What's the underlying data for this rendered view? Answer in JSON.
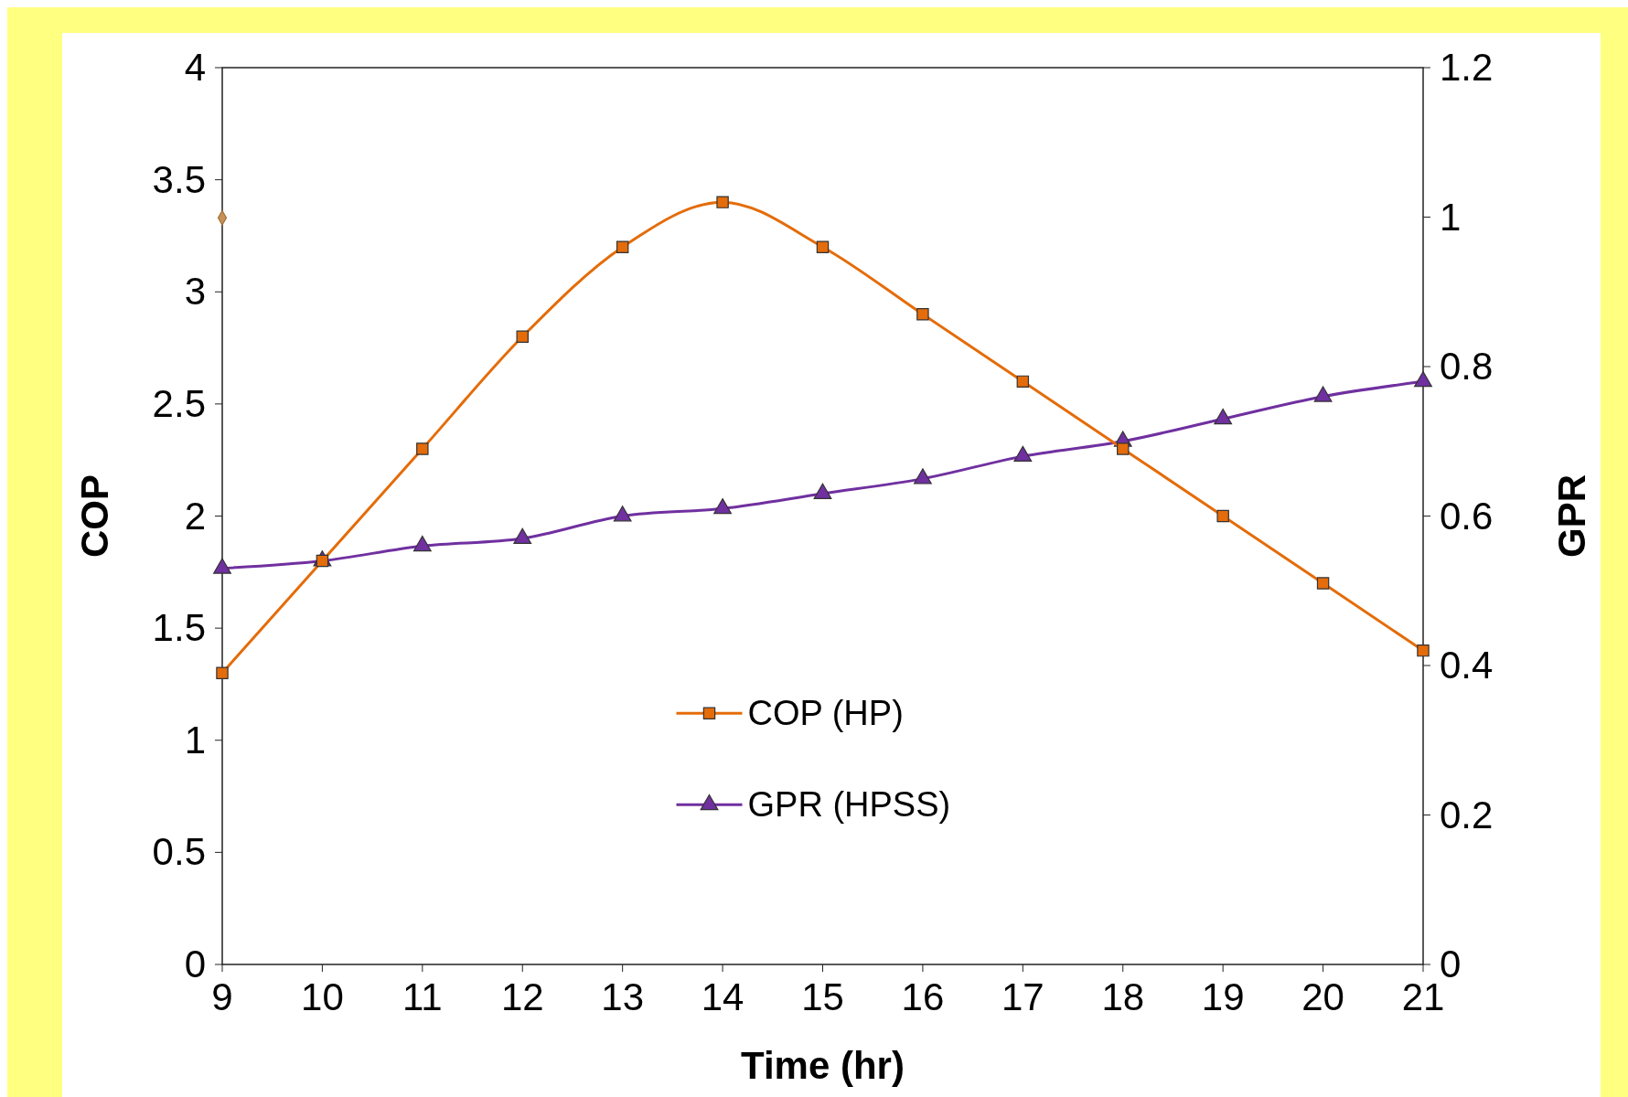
{
  "chart_data": {
    "type": "line",
    "xlabel": "Time (hr)",
    "ylabel": "COP",
    "y2label": "GPR",
    "x": [
      9,
      10,
      11,
      12,
      13,
      14,
      15,
      16,
      17,
      18,
      19,
      20,
      21
    ],
    "series": [
      {
        "name": "COP (HP)",
        "color": "#e46c0a",
        "marker": "square",
        "values": [
          1.3,
          1.8,
          2.3,
          2.8,
          3.2,
          3.4,
          3.2,
          2.9,
          2.6,
          2.3,
          2.0,
          1.7,
          1.4
        ]
      },
      {
        "name": "GPR (HPSS)",
        "color": "#7030a0",
        "marker": "triangle",
        "axis": "y2",
        "values": [
          0.53,
          0.54,
          0.56,
          0.57,
          0.6,
          0.61,
          0.63,
          0.65,
          0.68,
          0.7,
          0.73,
          0.76,
          0.78
        ]
      },
      {
        "type": "scatter",
        "color": "#c8915a",
        "marker": "diamond",
        "x": [
          9
        ],
        "values": [
          3.33
        ]
      }
    ],
    "xlim": [
      9,
      21
    ],
    "xticks": [
      9,
      10,
      11,
      12,
      13,
      14,
      15,
      16,
      17,
      18,
      19,
      20,
      21
    ],
    "ylim": [
      0,
      4
    ],
    "yticks": [
      0,
      0.5,
      1,
      1.5,
      2,
      2.5,
      3,
      3.5,
      4
    ],
    "y2lim": [
      0,
      1.2
    ],
    "y2ticks": [
      0,
      0.2,
      0.4,
      0.6,
      0.8,
      1,
      1.2
    ],
    "grid": false,
    "legend": "bottom"
  }
}
